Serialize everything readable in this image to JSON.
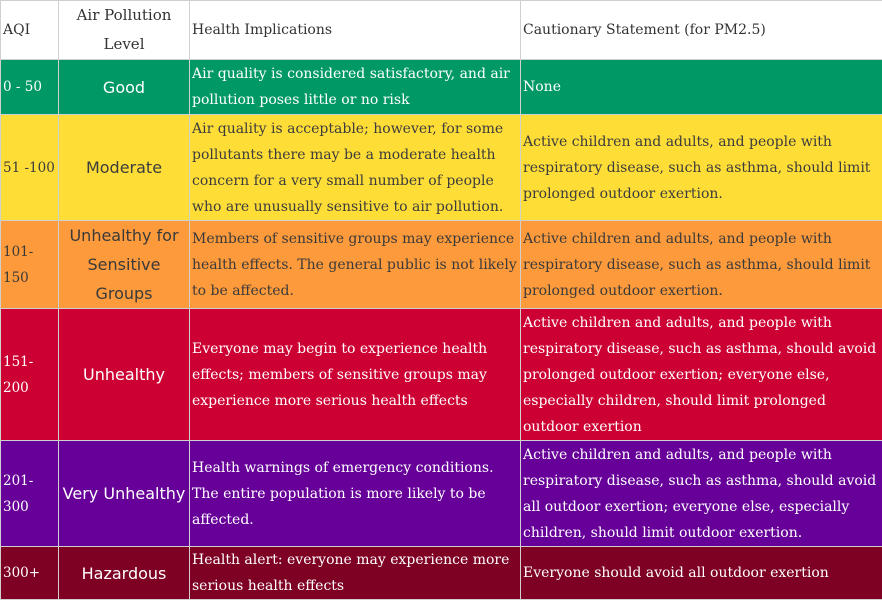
{
  "headers": {
    "aqi": "AQI",
    "level": "Air Pollution Level",
    "health": "Health Implications",
    "caution": "Cautionary Statement (for PM2.5)"
  },
  "rows": [
    {
      "aqi": "0 - 50",
      "level": "Good",
      "health": "Air quality is considered satisfactory, and air pollution poses little or no risk",
      "caution": "None",
      "color": "#009966"
    },
    {
      "aqi": "51 -100",
      "level": "Moderate",
      "health": "Air quality is acceptable; however, for some pollutants there may be a moderate health concern for a very small number of people who are unusually sensitive to air pollution.",
      "caution": "Active children and adults, and people with respiratory disease, such as asthma, should limit prolonged outdoor exertion.",
      "color": "#fedd37"
    },
    {
      "aqi": "101-150",
      "level": "Unhealthy for Sensitive Groups",
      "health": "Members of sensitive groups may experience health effects. The general public is not likely to be affected.",
      "caution": "Active children and adults, and people with respiratory disease, such as asthma, should limit prolonged outdoor exertion.",
      "color": "#fd9a3b"
    },
    {
      "aqi": "151-200",
      "level": "Unhealthy",
      "health": "Everyone may begin to experience health effects; members of sensitive groups may experience more serious health effects",
      "caution": "Active children and adults, and people with respiratory disease, such as asthma, should avoid prolonged outdoor exertion; everyone else, especially children, should limit prolonged outdoor exertion",
      "color": "#cc0033"
    },
    {
      "aqi": "201-300",
      "level": "Very Unhealthy",
      "health": "Health warnings of emergency conditions. The entire population is more likely to be affected.",
      "caution": "Active children and adults, and people with respiratory disease, such as asthma, should avoid all outdoor exertion; everyone else, especially children, should limit outdoor exertion.",
      "color": "#660099"
    },
    {
      "aqi": "300+",
      "level": "Hazardous",
      "health": "Health alert: everyone may experience more serious health effects",
      "caution": "Everyone should avoid all outdoor exertion",
      "color": "#7e0023"
    }
  ]
}
